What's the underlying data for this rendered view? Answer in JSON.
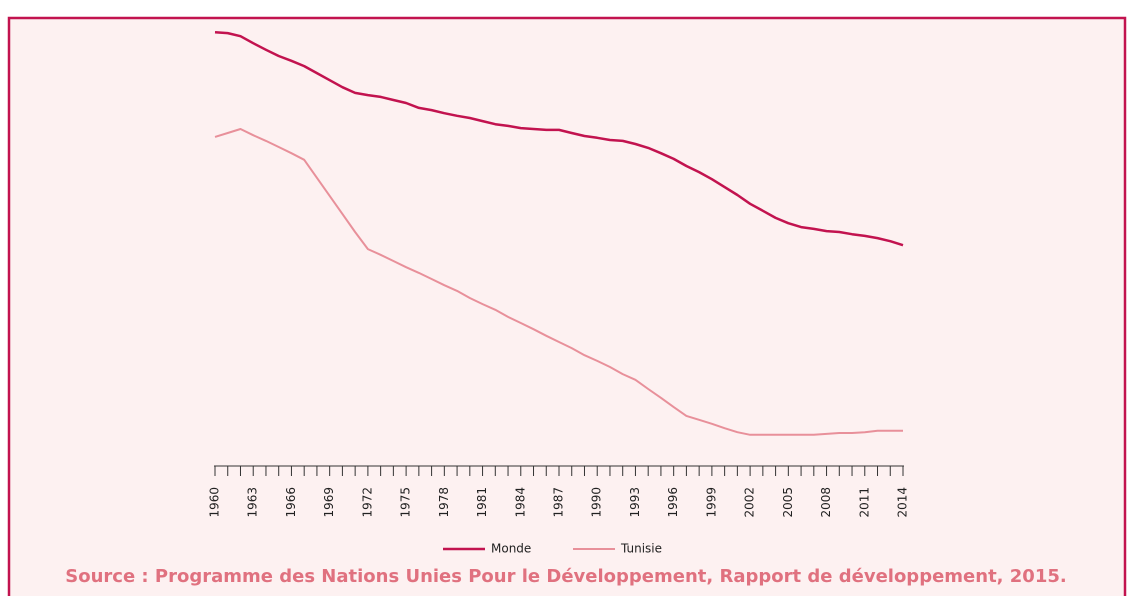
{
  "chart_data": {
    "type": "line",
    "categories": [
      "1960",
      null,
      null,
      "1963",
      null,
      null,
      "1966",
      null,
      null,
      "1969",
      null,
      null,
      "1972",
      null,
      null,
      "1975",
      null,
      null,
      "1978",
      null,
      null,
      "1981",
      null,
      null,
      "1984",
      null,
      null,
      "1987",
      null,
      null,
      "1990",
      null,
      null,
      "1993",
      null,
      null,
      "1996",
      null,
      null,
      "1999",
      null,
      null,
      "2002",
      null,
      null,
      "2005",
      null,
      null,
      "2008",
      null,
      null,
      "2011",
      null,
      null,
      "2014"
    ],
    "series": [
      {
        "name": "Monde",
        "color": "#c2134f",
        "values": [
          99.5,
          99.3,
          98.6,
          97.0,
          95.5,
          94.1,
          93.0,
          91.8,
          90.2,
          88.6,
          87.0,
          85.7,
          85.2,
          84.8,
          84.1,
          83.4,
          82.3,
          81.8,
          81.1,
          80.5,
          80.0,
          79.3,
          78.6,
          78.2,
          77.7,
          77.5,
          77.3,
          77.3,
          76.6,
          75.9,
          75.5,
          75.0,
          74.8,
          74.1,
          73.2,
          72.0,
          70.7,
          69.1,
          67.7,
          66.1,
          64.3,
          62.5,
          60.5,
          58.9,
          57.3,
          56.1,
          55.2,
          54.8,
          54.3,
          54.1,
          53.6,
          53.2,
          52.7,
          52.0,
          51.1
        ]
      },
      {
        "name": "Tunisie",
        "color": "#e8909a",
        "values": [
          75.7,
          76.6,
          77.5,
          76.1,
          74.8,
          73.4,
          72.0,
          70.5,
          66.4,
          62.3,
          58.2,
          54.1,
          50.2,
          48.9,
          47.5,
          46.1,
          44.8,
          43.4,
          42.0,
          40.7,
          39.1,
          37.7,
          36.4,
          34.8,
          33.4,
          32.0,
          30.5,
          29.1,
          27.7,
          26.1,
          24.8,
          23.4,
          21.8,
          20.5,
          18.4,
          16.4,
          14.3,
          12.3,
          11.4,
          10.5,
          9.5,
          8.6,
          8.0,
          8.0,
          8.0,
          8.0,
          8.0,
          8.0,
          8.2,
          8.4,
          8.4,
          8.6,
          8.9,
          8.9,
          8.9
        ]
      }
    ],
    "ylim": [
      0,
      100
    ],
    "source": "Source : Programme des Nations Unies Pour le Développement, Rapport de développement, 2015."
  }
}
